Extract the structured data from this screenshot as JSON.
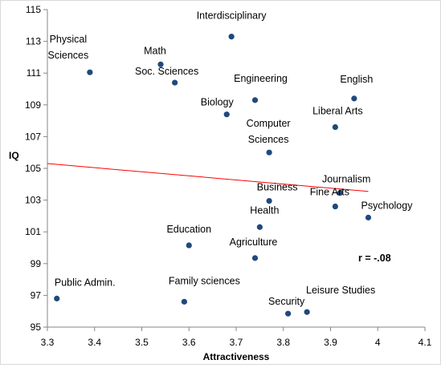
{
  "chart_data": {
    "type": "scatter",
    "title": "",
    "xlabel": "Attractiveness",
    "ylabel": "IQ",
    "xlim": [
      3.3,
      4.1
    ],
    "ylim": [
      95,
      115
    ],
    "xticks": [
      "3.3",
      "3.4",
      "3.5",
      "3.6",
      "3.7",
      "3.8",
      "3.9",
      "4",
      "4.1"
    ],
    "yticks": [
      "95",
      "97",
      "99",
      "101",
      "103",
      "105",
      "107",
      "109",
      "111",
      "113",
      "115"
    ],
    "grid": false,
    "marker_color": "#1f497d",
    "trendline_color": "#ff0000",
    "trendline": {
      "x": [
        3.3,
        3.98
      ],
      "y": [
        105.3,
        103.55
      ]
    },
    "annotation": "r = -.08",
    "points": [
      {
        "label": "Interdisciplinary",
        "x": 3.69,
        "y": 113.3
      },
      {
        "label": "Physical\nSciences",
        "x": 3.39,
        "y": 111.05
      },
      {
        "label": "Math",
        "x": 3.54,
        "y": 111.55
      },
      {
        "label": "Soc. Sciences",
        "x": 3.57,
        "y": 110.4
      },
      {
        "label": "Engineering",
        "x": 3.74,
        "y": 109.3
      },
      {
        "label": "English",
        "x": 3.95,
        "y": 109.4
      },
      {
        "label": "Biology",
        "x": 3.68,
        "y": 108.4
      },
      {
        "label": "Liberal Arts",
        "x": 3.91,
        "y": 107.6
      },
      {
        "label": "Computer\nSciences",
        "x": 3.77,
        "y": 106.0
      },
      {
        "label": "Journalism",
        "x": 3.92,
        "y": 103.45
      },
      {
        "label": "Business",
        "x": 3.77,
        "y": 102.95
      },
      {
        "label": "Fine Arts",
        "x": 3.91,
        "y": 102.6
      },
      {
        "label": "Psychology",
        "x": 3.98,
        "y": 101.9
      },
      {
        "label": "Health",
        "x": 3.75,
        "y": 101.3
      },
      {
        "label": "Education",
        "x": 3.6,
        "y": 100.15
      },
      {
        "label": "Agriculture",
        "x": 3.74,
        "y": 99.35
      },
      {
        "label": "Public Admin.",
        "x": 3.32,
        "y": 96.8
      },
      {
        "label": "Family sciences",
        "x": 3.59,
        "y": 96.6
      },
      {
        "label": "Security",
        "x": 3.81,
        "y": 95.85
      },
      {
        "label": "Leisure Studies",
        "x": 3.85,
        "y": 95.95
      }
    ]
  }
}
